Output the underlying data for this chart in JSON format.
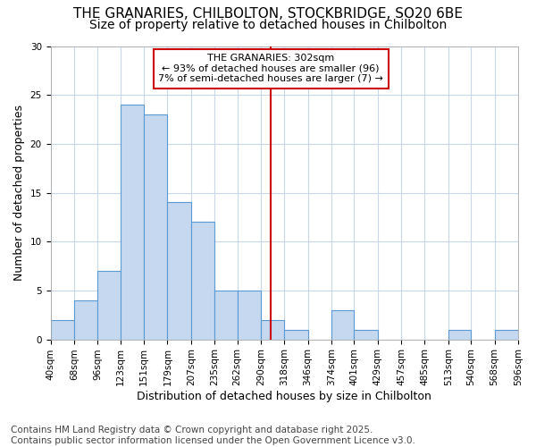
{
  "title_line1": "THE GRANARIES, CHILBOLTON, STOCKBRIDGE, SO20 6BE",
  "title_line2": "Size of property relative to detached houses in Chilbolton",
  "xlabel": "Distribution of detached houses by size in Chilbolton",
  "ylabel": "Number of detached properties",
  "footer_line1": "Contains HM Land Registry data © Crown copyright and database right 2025.",
  "footer_line2": "Contains public sector information licensed under the Open Government Licence v3.0.",
  "annotation_title": "THE GRANARIES: 302sqm",
  "annotation_line1": "← 93% of detached houses are smaller (96)",
  "annotation_line2": "7% of semi-detached houses are larger (7) →",
  "bin_edges": [
    40,
    68,
    96,
    123,
    151,
    179,
    207,
    235,
    262,
    290,
    318,
    346,
    374,
    401,
    429,
    457,
    485,
    513,
    540,
    568,
    596
  ],
  "bar_heights": [
    2,
    4,
    7,
    24,
    23,
    14,
    12,
    5,
    5,
    2,
    1,
    0,
    3,
    1,
    0,
    0,
    0,
    1,
    0,
    1,
    0
  ],
  "bar_color": "#c5d8f0",
  "bar_edge_color": "#5b9bd5",
  "vline_x": 302,
  "vline_color": "#cc0000",
  "ylim": [
    0,
    30
  ],
  "yticks": [
    0,
    5,
    10,
    15,
    20,
    25,
    30
  ],
  "bg_color": "#ffffff",
  "plot_bg_color": "#ffffff",
  "grid_color": "#c8d8e8",
  "title_fontsize": 11,
  "subtitle_fontsize": 10,
  "axis_label_fontsize": 9,
  "tick_fontsize": 7.5,
  "footer_fontsize": 7.5,
  "annotation_fontsize": 8
}
